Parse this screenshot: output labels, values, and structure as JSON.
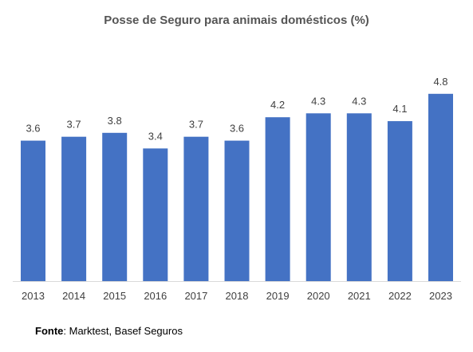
{
  "chart_data": {
    "type": "bar",
    "title": "Posse de Seguro para animais domésticos (%)",
    "categories": [
      "2013",
      "2014",
      "2015",
      "2016",
      "2017",
      "2018",
      "2019",
      "2020",
      "2021",
      "2022",
      "2023"
    ],
    "values": [
      3.6,
      3.7,
      3.8,
      3.4,
      3.7,
      3.6,
      4.2,
      4.3,
      4.3,
      4.1,
      4.8
    ],
    "value_labels": [
      "3.6",
      "3.7",
      "3.8",
      "3.4",
      "3.7",
      "3.6",
      "4.2",
      "4.3",
      "4.3",
      "4.1",
      "4.8"
    ],
    "xlabel": "",
    "ylabel": "",
    "ylim": [
      0,
      5
    ],
    "grid": false,
    "legend": "none",
    "bar_color": "#4472C4",
    "label_color": "#404040"
  },
  "source": {
    "label": "Fonte",
    "text": ": Marktest, Basef Seguros"
  }
}
